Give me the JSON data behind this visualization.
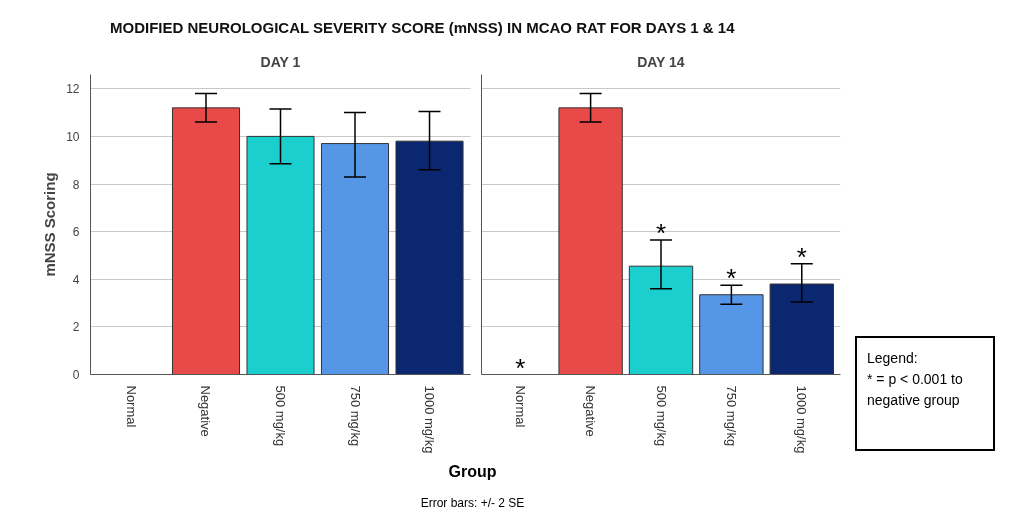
{
  "chart_data": [
    {
      "type": "bar",
      "title": "MODIFIED NEUROLOGICAL SEVERITY SCORE (mNSS) IN MCAO RAT FOR DAYS 1 & 14",
      "subtitle": "DAY 1",
      "xlabel": "Group",
      "ylabel": "mNSS Scoring",
      "categories": [
        "Normal",
        "Negative",
        "500 mg/kg",
        "750 mg/kg",
        "1000 mg/kg"
      ],
      "values": [
        0,
        11.2,
        10.0,
        9.7,
        9.8
      ],
      "colors": [
        "#333333",
        "#e84a4a",
        "#1ccfcf",
        "#5596e6",
        "#0a2770"
      ],
      "errors": [
        null,
        [
          10.6,
          11.8
        ],
        [
          8.85,
          11.15
        ],
        [
          8.3,
          11.0
        ],
        [
          8.6,
          11.05
        ]
      ],
      "ylim": [
        0,
        12.6
      ],
      "yticks": [
        0,
        2,
        4,
        6,
        8,
        10,
        12
      ],
      "grid": "y",
      "annotations": [
        "Error bars: +/- 2 SE"
      ]
    },
    {
      "type": "bar",
      "title": "DAY 14",
      "categories": [
        "Normal",
        "Negative",
        "500 mg/kg",
        "750 mg/kg",
        "1000 mg/kg"
      ],
      "values": [
        0,
        11.2,
        4.55,
        3.35,
        3.8
      ],
      "colors": [
        "#333333",
        "#e84a4a",
        "#1ccfcf",
        "#5596e6",
        "#0a2770"
      ],
      "errors": [
        null,
        [
          10.6,
          11.8
        ],
        [
          3.6,
          5.65
        ],
        [
          2.95,
          3.75
        ],
        [
          3.05,
          4.65
        ]
      ],
      "ylim": [
        0,
        12.6
      ],
      "yticks": [
        0,
        2,
        4,
        6,
        8,
        10,
        12
      ],
      "grid": "y",
      "tick_labels": "x",
      "annotations": [
        {
          "text": "*",
          "x": "Normal",
          "y": 0
        },
        {
          "text": "*",
          "x": "500 mg/kg",
          "y": 5.65
        },
        {
          "text": "*",
          "x": "750 mg/kg",
          "y": 3.75
        },
        {
          "text": "*",
          "x": "1000 mg/kg",
          "y": 4.65
        },
        "Legend:",
        "* = p < 0.001 to negative group"
      ]
    }
  ]
}
